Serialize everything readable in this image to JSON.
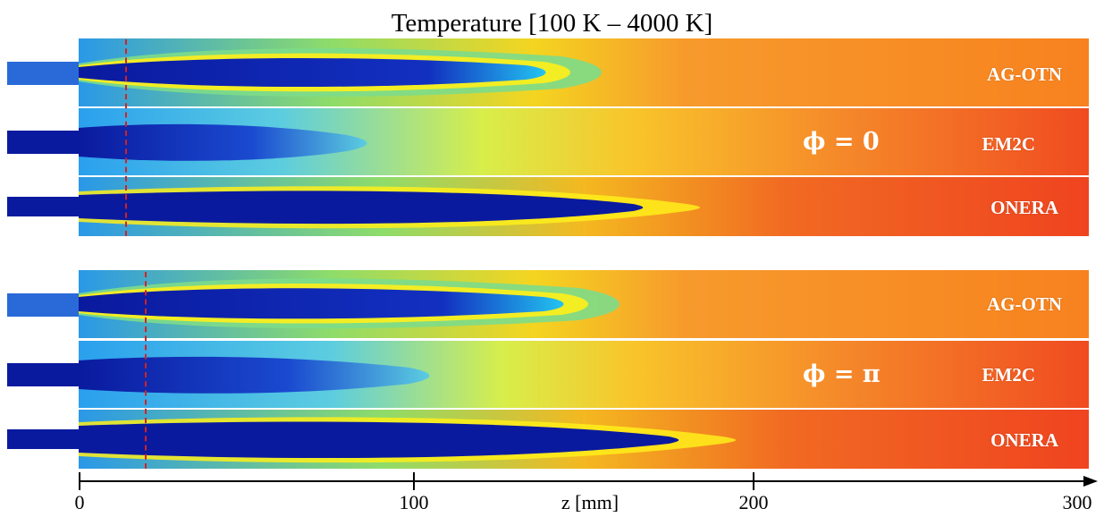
{
  "title": "Temperature [100 K – 4000 K]",
  "groups": [
    {
      "phase_label": "ϕ = 0",
      "rows": [
        {
          "label": "AG-OTN"
        },
        {
          "label": "EM2C"
        },
        {
          "label": "ONERA"
        }
      ]
    },
    {
      "phase_label": "ϕ = π",
      "rows": [
        {
          "label": "AG-OTN"
        },
        {
          "label": "EM2C"
        },
        {
          "label": "ONERA"
        }
      ]
    }
  ],
  "axis": {
    "label": "z [mm]",
    "ticks": [
      "0",
      "100",
      "200",
      "300"
    ],
    "range_mm": [
      0,
      300
    ]
  },
  "colormap": {
    "cold": "#0a1a9e",
    "cool": "#23c4f0",
    "mid": "#7ddc8a",
    "warm": "#ffee1a",
    "hot": "#f7a225",
    "hottest": "#f05220",
    "marker_line": "#d62020"
  }
}
